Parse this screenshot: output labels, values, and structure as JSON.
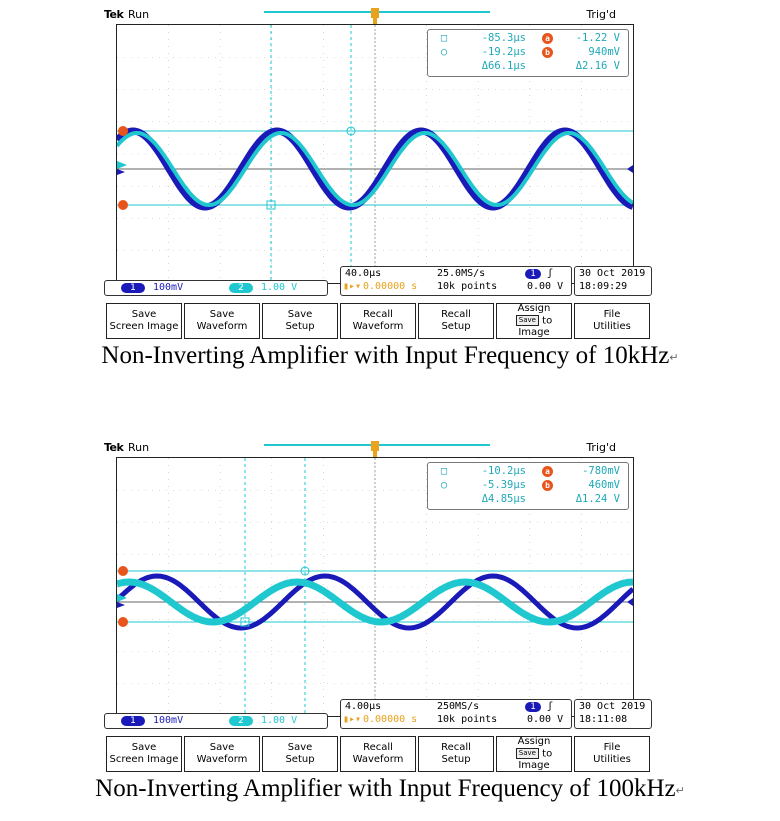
{
  "colors": {
    "ch1": "#1a1ab8",
    "ch2": "#1fc8cf",
    "cursor": "#1fc8cf",
    "badge": "#e8551c",
    "trig": "#e8a21c"
  },
  "scopes": [
    {
      "header": {
        "brand": "Tek",
        "state": "Run",
        "trigger": "Trig'd"
      },
      "cursors": {
        "t_a": "-85.3µs",
        "v_a": "-1.22 V",
        "t_b": "-19.2µs",
        "v_b": "940mV",
        "dt": "Δ66.1µs",
        "dv": "Δ2.16 V",
        "a_label": "a",
        "b_label": "b"
      },
      "channels": {
        "ch1_label": "1",
        "ch1_scale": "100mV",
        "ch2_label": "2",
        "ch2_scale": "1.00 V"
      },
      "timebase": {
        "div": "40.0µs",
        "rate": "25.0MS/s",
        "trig_pos": "0.00000 s",
        "points": "10k points",
        "trig_ch": "1",
        "trig_level": "0.00 V"
      },
      "datetime": {
        "date": "30 Oct  2019",
        "time": "18:09:29"
      },
      "menu": [
        {
          "l1": "Save",
          "l2": "Screen Image"
        },
        {
          "l1": "Save",
          "l2": "Waveform"
        },
        {
          "l1": "Save",
          "l2": "Setup"
        },
        {
          "l1": "Recall",
          "l2": "Waveform"
        },
        {
          "l1": "Recall",
          "l2": "Setup"
        },
        {
          "l1": "Assign",
          "l2": "to",
          "badge": "Save",
          "l3": "Image"
        },
        {
          "l1": "File",
          "l2": "Utilities"
        }
      ],
      "caption": "Non-Inverting  Amplifier  with  Input  Frequency  of  10kHz"
    },
    {
      "header": {
        "brand": "Tek",
        "state": "Run",
        "trigger": "Trig'd"
      },
      "cursors": {
        "t_a": "-10.2µs",
        "v_a": "-780mV",
        "t_b": "-5.39µs",
        "v_b": "460mV",
        "dt": "Δ4.85µs",
        "dv": "Δ1.24 V",
        "a_label": "a",
        "b_label": "b"
      },
      "channels": {
        "ch1_label": "1",
        "ch1_scale": "100mV",
        "ch2_label": "2",
        "ch2_scale": "1.00 V"
      },
      "timebase": {
        "div": "4.00µs",
        "rate": "250MS/s",
        "trig_pos": "0.00000 s",
        "points": "10k points",
        "trig_ch": "1",
        "trig_level": "0.00 V"
      },
      "datetime": {
        "date": "30 Oct  2019",
        "time": "18:11:08"
      },
      "menu": [
        {
          "l1": "Save",
          "l2": "Screen Image"
        },
        {
          "l1": "Save",
          "l2": "Waveform"
        },
        {
          "l1": "Save",
          "l2": "Setup"
        },
        {
          "l1": "Recall",
          "l2": "Waveform"
        },
        {
          "l1": "Recall",
          "l2": "Setup"
        },
        {
          "l1": "Assign",
          "l2": "to",
          "badge": "Save",
          "l3": "Image"
        },
        {
          "l1": "File",
          "l2": "Utilities"
        }
      ],
      "caption": "Non-Inverting  Amplifier  with  Input  Frequency  of  100kHz"
    }
  ],
  "paragraph_mark": "↵"
}
